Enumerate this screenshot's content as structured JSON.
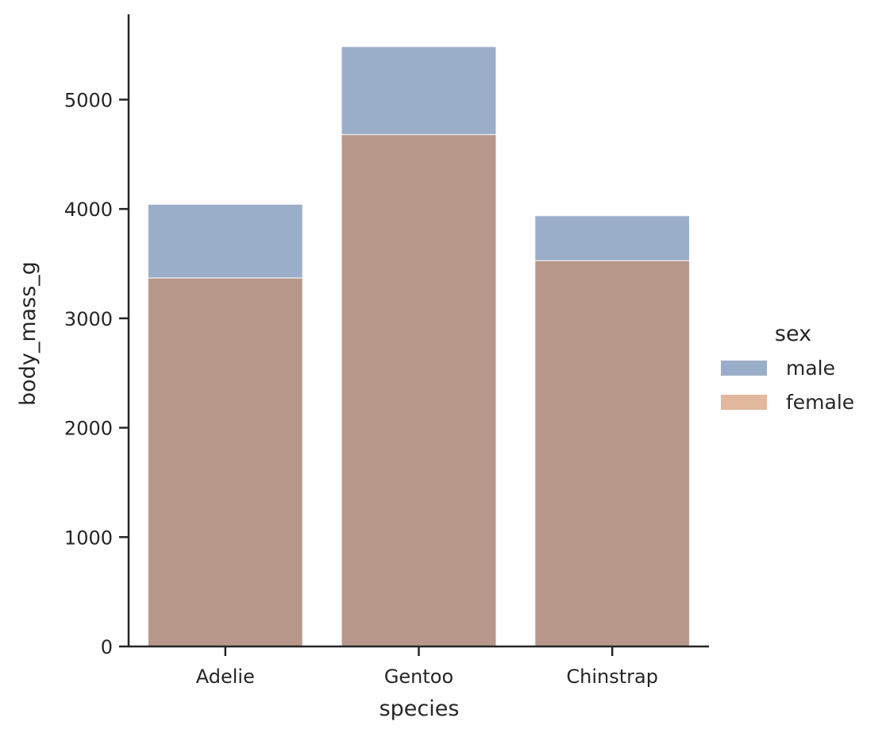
{
  "chart_data": {
    "type": "bar",
    "categories": [
      "Adelie",
      "Gentoo",
      "Chinstrap"
    ],
    "series": [
      {
        "name": "male",
        "values": [
          4043,
          5485,
          3939
        ],
        "color": "#9aadc9"
      },
      {
        "name": "female",
        "values": [
          3369,
          4680,
          3527
        ],
        "color": "#b69789"
      }
    ],
    "xlabel": "species",
    "ylabel": "body_mass_g",
    "ylim": [
      0,
      5780
    ],
    "yticks": [
      0,
      1000,
      2000,
      3000,
      4000,
      5000
    ],
    "legend": {
      "title": "sex",
      "placement": "right",
      "entries": [
        {
          "label": "male",
          "color": "#9aadc9"
        },
        {
          "label": "female",
          "color": "#e3b89e"
        }
      ]
    },
    "grid": false
  }
}
